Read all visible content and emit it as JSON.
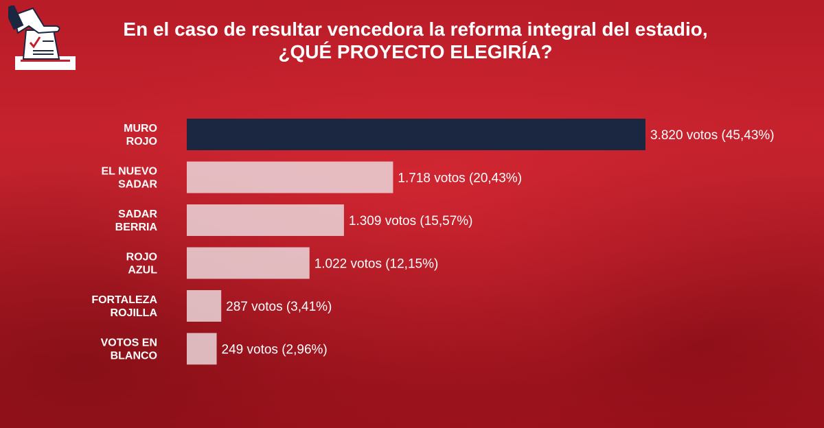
{
  "header": {
    "title_line1": "En el caso de resultar vencedora la reforma integral del estadio,",
    "title_line2": "¿QUÉ PROYECTO ELEGIRÍA?",
    "icon": "ballot-box-icon"
  },
  "colors": {
    "background": "#c2202b",
    "highlight_bar": "#1b2640",
    "bar": "#ead7da",
    "text": "#ffffff"
  },
  "chart_data": {
    "type": "bar",
    "orientation": "horizontal",
    "title": "En el caso de resultar vencedora la reforma integral del estadio, ¿QUÉ PROYECTO ELEGIRÍA?",
    "xlim": [
      0,
      3820
    ],
    "grid": false,
    "legend": "none",
    "categories": [
      [
        "MURO",
        "ROJO"
      ],
      [
        "EL NUEVO",
        "SADAR"
      ],
      [
        "SADAR",
        "BERRIA"
      ],
      [
        "ROJO",
        "AZUL"
      ],
      [
        "FORTALEZA",
        "ROJILLA"
      ],
      [
        "VOTOS EN",
        "BLANCO"
      ]
    ],
    "values": [
      3820,
      1718,
      1309,
      1022,
      287,
      249
    ],
    "percentages": [
      45.43,
      20.43,
      15.57,
      12.15,
      3.41,
      2.96
    ],
    "data_labels": [
      "3.820 votos (45,43%)",
      "1.718 votos (20,43%)",
      "1.309 votos (15,57%)",
      "1.022 votos (12,15%)",
      "287 votos (3,41%)",
      "249 votos (2,96%)"
    ],
    "highlight_index": 0
  }
}
